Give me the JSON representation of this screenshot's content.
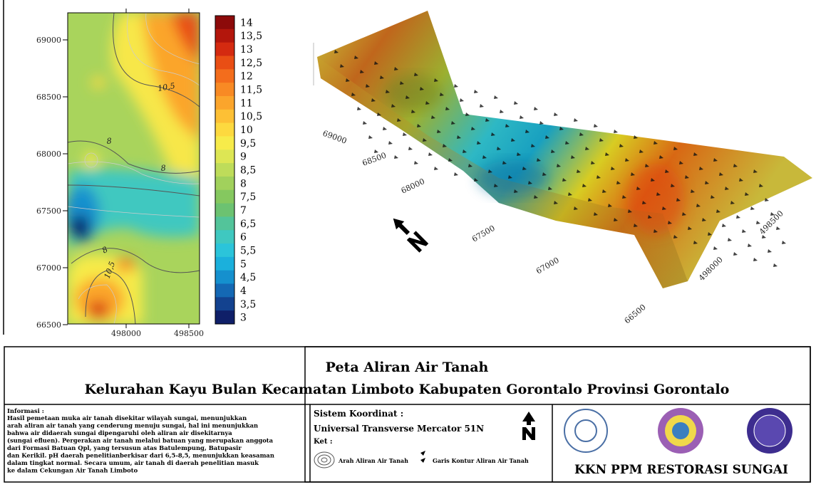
{
  "map": {
    "yticks": [
      "69000",
      "68500",
      "68000",
      "67500",
      "67000",
      "66500"
    ],
    "xticks": [
      "498000",
      "498500"
    ],
    "contour_labels": [
      "10,5",
      "8",
      "8",
      "8",
      "10,5"
    ],
    "legend": [
      {
        "label": "14",
        "color": "#8c0a0a"
      },
      {
        "label": "13,5",
        "color": "#b3160c"
      },
      {
        "label": "13",
        "color": "#d42a10"
      },
      {
        "label": "12,5",
        "color": "#e94e14"
      },
      {
        "label": "12",
        "color": "#f36d1c"
      },
      {
        "label": "11,5",
        "color": "#f88a24"
      },
      {
        "label": "11",
        "color": "#fba52c"
      },
      {
        "label": "10,5",
        "color": "#fdc035"
      },
      {
        "label": "10",
        "color": "#fdd93f"
      },
      {
        "label": "9,5",
        "color": "#f7eb4a"
      },
      {
        "label": "9",
        "color": "#dde654"
      },
      {
        "label": "8,5",
        "color": "#bedc5a"
      },
      {
        "label": "8",
        "color": "#a1d15c"
      },
      {
        "label": "7,5",
        "color": "#85c85f"
      },
      {
        "label": "7",
        "color": "#6cc271"
      },
      {
        "label": "6,5",
        "color": "#53c49a"
      },
      {
        "label": "6",
        "color": "#3fc8c0"
      },
      {
        "label": "5,5",
        "color": "#2bc4da"
      },
      {
        "label": "5",
        "color": "#1bb0dc"
      },
      {
        "label": "4,5",
        "color": "#1590ce"
      },
      {
        "label": "4",
        "color": "#1468b4"
      },
      {
        "label": "3,5",
        "color": "#13428f"
      },
      {
        "label": "3",
        "color": "#0f1f68"
      }
    ]
  },
  "surface": {
    "axis_labels": [
      "69000",
      "68500",
      "68000",
      "67500",
      "67000",
      "66500",
      "498000",
      "498500"
    ]
  },
  "footer": {
    "title": "Peta Aliran Air Tanah",
    "subtitle": "Kelurahan Kayu Bulan Kecamatan Limboto Kabupaten Gorontalo Provinsi Gorontalo",
    "info_heading": "Informasi :",
    "info_lines": [
      "Hasil pemetaan muka air tanah disekitar wilayah sungai, menunjukkan",
      "arah aliran air tanah yang cenderung menuju sungai, hal ini menunjukkan",
      "bahwa air didaerah sungai dipengaruhi oleh aliran air disekitarnya",
      "(sungai efluen). Pergerakan air tanah melalui batuan yang merupakan anggota",
      "dari Formasi Batuan Qpl, yang tersusun atas Batulempung, Batupasir",
      "dan Kerikil. pH daerah penelitianberkisar dari 6,5-8,5, menunjukkan keasaman",
      "dalam tingkat normal. Secara umum, air tanah di daerah penelitian masuk",
      "ke dalam Cekungan Air Tanah Limboto"
    ],
    "system_label": "Sistem Koordinat :",
    "system_value": "Universal Transverse Mercator 51N",
    "ket": "Ket :",
    "legend_flow": "Arah Aliran Air Tanah",
    "legend_contour": "Garis Kontur Aliran Air Tanah",
    "program": "KKN PPM RESTORASI SUNGAI"
  }
}
